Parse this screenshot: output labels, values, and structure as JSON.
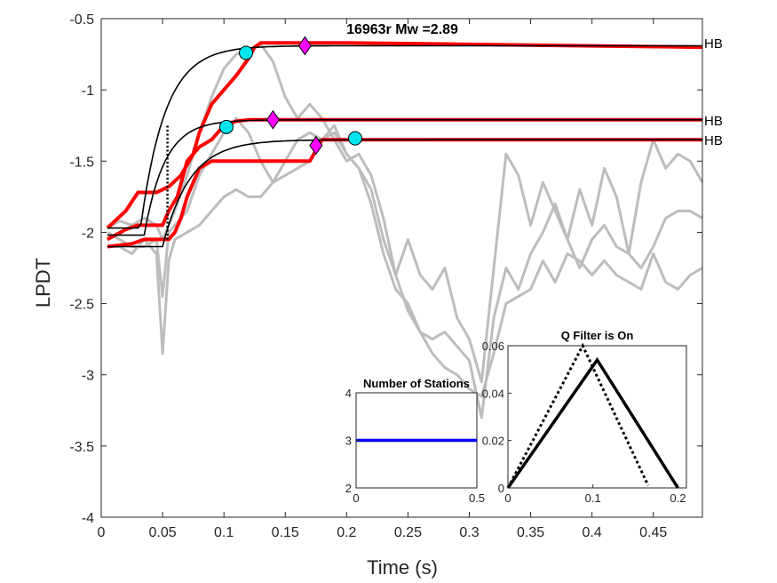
{
  "chart_data": {
    "main": {
      "type": "line",
      "title": "16963r     Mw =2.89",
      "xlabel": "Time (s)",
      "ylabel": "LPDT",
      "xlim": [
        0,
        0.49
      ],
      "ylim": [
        -4,
        -0.5
      ],
      "xticks": [
        0,
        0.05,
        0.1,
        0.15,
        0.2,
        0.25,
        0.3,
        0.35,
        0.4,
        0.45
      ],
      "xtick_labels": [
        "0",
        "0.05",
        "0.1",
        "0.15",
        "0.2",
        "0.25",
        "0.3",
        "0.35",
        "0.4",
        "0.45"
      ],
      "yticks": [
        -4,
        -3.5,
        -3,
        -2.5,
        -2,
        -1.5,
        -1,
        -0.5
      ],
      "ytick_labels": [
        "-4",
        "-3.5",
        "-3",
        "-2.5",
        "-2",
        "-1.5",
        "-1",
        "-0.5"
      ],
      "grid": false,
      "colors": {
        "gray": "#bdbdbd",
        "red": "#ff0000",
        "black": "#000000",
        "circle": "#00e5ee",
        "diamond": "#ff00ff"
      },
      "gray_series": [
        {
          "x": [
            0.005,
            0.015,
            0.025,
            0.035,
            0.045,
            0.05,
            0.055,
            0.06,
            0.07,
            0.08,
            0.09,
            0.1,
            0.11,
            0.12,
            0.13,
            0.14,
            0.15,
            0.16,
            0.17,
            0.18,
            0.19,
            0.2,
            0.21,
            0.22,
            0.23,
            0.24,
            0.25,
            0.26,
            0.27,
            0.28,
            0.29,
            0.3,
            0.31,
            0.32,
            0.33,
            0.34,
            0.35,
            0.36,
            0.37,
            0.38,
            0.39,
            0.4,
            0.41,
            0.42,
            0.43,
            0.44,
            0.45,
            0.46,
            0.47,
            0.48,
            0.49
          ],
          "y": [
            -1.97,
            -1.92,
            -1.95,
            -1.9,
            -1.95,
            -2.05,
            -1.95,
            -1.85,
            -1.6,
            -1.3,
            -1.05,
            -0.85,
            -0.75,
            -0.72,
            -0.68,
            -0.8,
            -1.05,
            -1.2,
            -1.1,
            -1.2,
            -1.35,
            -1.5,
            -1.45,
            -1.6,
            -1.9,
            -2.3,
            -2.05,
            -2.3,
            -2.4,
            -2.25,
            -2.6,
            -2.75,
            -3.05,
            -2.25,
            -1.45,
            -1.6,
            -1.95,
            -1.65,
            -1.85,
            -2.05,
            -1.7,
            -1.95,
            -1.55,
            -1.75,
            -2.15,
            -1.65,
            -1.35,
            -1.55,
            -1.45,
            -1.5,
            -1.65
          ]
        },
        {
          "x": [
            0.005,
            0.015,
            0.025,
            0.035,
            0.045,
            0.05,
            0.055,
            0.06,
            0.07,
            0.08,
            0.09,
            0.1,
            0.11,
            0.12,
            0.13,
            0.14,
            0.15,
            0.16,
            0.17,
            0.18,
            0.19,
            0.2,
            0.21,
            0.22,
            0.23,
            0.24,
            0.25,
            0.26,
            0.27,
            0.28,
            0.29,
            0.3,
            0.31,
            0.32,
            0.33,
            0.34,
            0.35,
            0.36,
            0.37,
            0.38,
            0.39,
            0.4,
            0.41,
            0.42,
            0.43,
            0.44,
            0.45,
            0.46,
            0.47,
            0.48,
            0.49
          ],
          "y": [
            -2.0,
            -2.05,
            -2.1,
            -2.1,
            -2.05,
            -2.45,
            -2.0,
            -1.95,
            -1.85,
            -1.6,
            -1.45,
            -1.3,
            -1.2,
            -1.3,
            -1.5,
            -1.65,
            -1.6,
            -1.55,
            -1.5,
            -1.35,
            -1.25,
            -1.45,
            -1.55,
            -1.8,
            -2.15,
            -2.4,
            -2.5,
            -2.7,
            -2.75,
            -2.7,
            -2.8,
            -2.9,
            -3.3,
            -2.6,
            -2.25,
            -2.4,
            -2.15,
            -2.0,
            -1.8,
            -2.05,
            -2.25,
            -2.05,
            -1.95,
            -2.1,
            -2.15,
            -2.25,
            -2.1,
            -1.9,
            -1.85,
            -1.85,
            -1.9
          ]
        },
        {
          "x": [
            0.005,
            0.015,
            0.025,
            0.035,
            0.045,
            0.05,
            0.055,
            0.06,
            0.07,
            0.08,
            0.09,
            0.1,
            0.11,
            0.12,
            0.13,
            0.14,
            0.15,
            0.16,
            0.17,
            0.18,
            0.19,
            0.2,
            0.21,
            0.22,
            0.23,
            0.24,
            0.25,
            0.26,
            0.27,
            0.28,
            0.29,
            0.3,
            0.31,
            0.32,
            0.33,
            0.34,
            0.35,
            0.36,
            0.37,
            0.38,
            0.39,
            0.4,
            0.41,
            0.42,
            0.43,
            0.44,
            0.45,
            0.46,
            0.47,
            0.48,
            0.49
          ],
          "y": [
            -2.1,
            -2.1,
            -2.15,
            -2.05,
            -2.15,
            -2.85,
            -2.2,
            -2.05,
            -2.0,
            -1.95,
            -1.85,
            -1.75,
            -1.7,
            -1.75,
            -1.75,
            -1.65,
            -1.5,
            -1.35,
            -1.3,
            -1.35,
            -1.3,
            -1.45,
            -1.55,
            -1.7,
            -2.05,
            -2.3,
            -2.55,
            -2.7,
            -2.85,
            -2.95,
            -3.0,
            -3.1,
            -3.15,
            -2.85,
            -2.5,
            -2.45,
            -2.4,
            -2.2,
            -2.35,
            -2.15,
            -2.2,
            -2.3,
            -2.2,
            -2.3,
            -2.35,
            -2.4,
            -2.15,
            -2.35,
            -2.4,
            -2.3,
            -2.25
          ]
        }
      ],
      "red_series": [
        {
          "x": [
            0.005,
            0.02,
            0.03,
            0.04,
            0.045,
            0.055,
            0.065,
            0.075,
            0.08,
            0.09,
            0.1,
            0.11,
            0.12,
            0.125,
            0.13,
            0.2,
            0.49
          ],
          "y": [
            -1.97,
            -1.85,
            -1.72,
            -1.72,
            -1.72,
            -1.68,
            -1.6,
            -1.45,
            -1.3,
            -1.1,
            -1.0,
            -0.9,
            -0.78,
            -0.7,
            -0.67,
            -0.67,
            -0.7
          ]
        },
        {
          "x": [
            0.005,
            0.02,
            0.03,
            0.04,
            0.05,
            0.055,
            0.062,
            0.07,
            0.08,
            0.09,
            0.095,
            0.1,
            0.11,
            0.12,
            0.13,
            0.14,
            0.15,
            0.16,
            0.2,
            0.49
          ],
          "y": [
            -2.05,
            -1.98,
            -1.95,
            -1.95,
            -1.95,
            -1.85,
            -1.75,
            -1.5,
            -1.4,
            -1.35,
            -1.3,
            -1.25,
            -1.22,
            -1.21,
            -1.21,
            -1.21,
            -1.21,
            -1.21,
            -1.21,
            -1.21
          ]
        },
        {
          "x": [
            0.005,
            0.025,
            0.035,
            0.05,
            0.055,
            0.06,
            0.065,
            0.07,
            0.08,
            0.09,
            0.1,
            0.11,
            0.12,
            0.13,
            0.14,
            0.17,
            0.18,
            0.2,
            0.21,
            0.49
          ],
          "y": [
            -2.1,
            -2.08,
            -2.05,
            -2.05,
            -2.05,
            -2.0,
            -1.9,
            -1.75,
            -1.55,
            -1.5,
            -1.5,
            -1.5,
            -1.5,
            -1.5,
            -1.5,
            -1.5,
            -1.35,
            -1.35,
            -1.35,
            -1.35
          ]
        }
      ],
      "black_fits": [
        {
          "a": -1.97,
          "b": -0.69,
          "x0": 0.067,
          "k": 50
        },
        {
          "a": -2.02,
          "b": -1.21,
          "x0": 0.07,
          "k": 60
        },
        {
          "a": -2.1,
          "b": -1.35,
          "x0": 0.085,
          "k": 45
        }
      ],
      "circles": [
        {
          "x": 0.118,
          "y": -0.74
        },
        {
          "x": 0.102,
          "y": -1.26
        },
        {
          "x": 0.207,
          "y": -1.34
        }
      ],
      "diamonds": [
        {
          "x": 0.166,
          "y": -0.69
        },
        {
          "x": 0.14,
          "y": -1.21
        },
        {
          "x": 0.175,
          "y": -1.39
        }
      ],
      "vline": {
        "x": 0.054,
        "y1": -2.05,
        "y2": -1.25
      },
      "hb_labels": [
        {
          "text": "HB",
          "y": -0.67
        },
        {
          "text": "HB",
          "y": -1.21
        },
        {
          "text": "HB",
          "y": -1.35
        }
      ]
    },
    "stations": {
      "type": "line",
      "title": "Number of Stations",
      "xlim": [
        0,
        0.5
      ],
      "ylim": [
        2,
        4
      ],
      "xticks": [
        0,
        0.5
      ],
      "xtick_labels": [
        "0",
        "0.5"
      ],
      "yticks": [
        2,
        3,
        4
      ],
      "ytick_labels": [
        "2",
        "3",
        "4"
      ],
      "color": "#0000ff",
      "x": [
        0,
        0.5
      ],
      "y": [
        3,
        3
      ]
    },
    "qfilter": {
      "type": "line",
      "title": "Q Filter is On",
      "xlim": [
        0,
        0.21
      ],
      "ylim": [
        0,
        0.06
      ],
      "xticks": [
        0,
        0.1,
        0.2
      ],
      "xtick_labels": [
        "0",
        "0.1",
        "0.2"
      ],
      "yticks": [
        0,
        0.02,
        0.04,
        0.06
      ],
      "ytick_labels": [
        "0",
        "0.02",
        "0.04",
        "0.06"
      ],
      "solid": {
        "x": [
          0,
          0.105,
          0.2
        ],
        "y": [
          0,
          0.054,
          0
        ]
      },
      "dotted": {
        "x": [
          0,
          0.088,
          0.165
        ],
        "y": [
          0,
          0.06,
          0.001
        ]
      }
    }
  }
}
